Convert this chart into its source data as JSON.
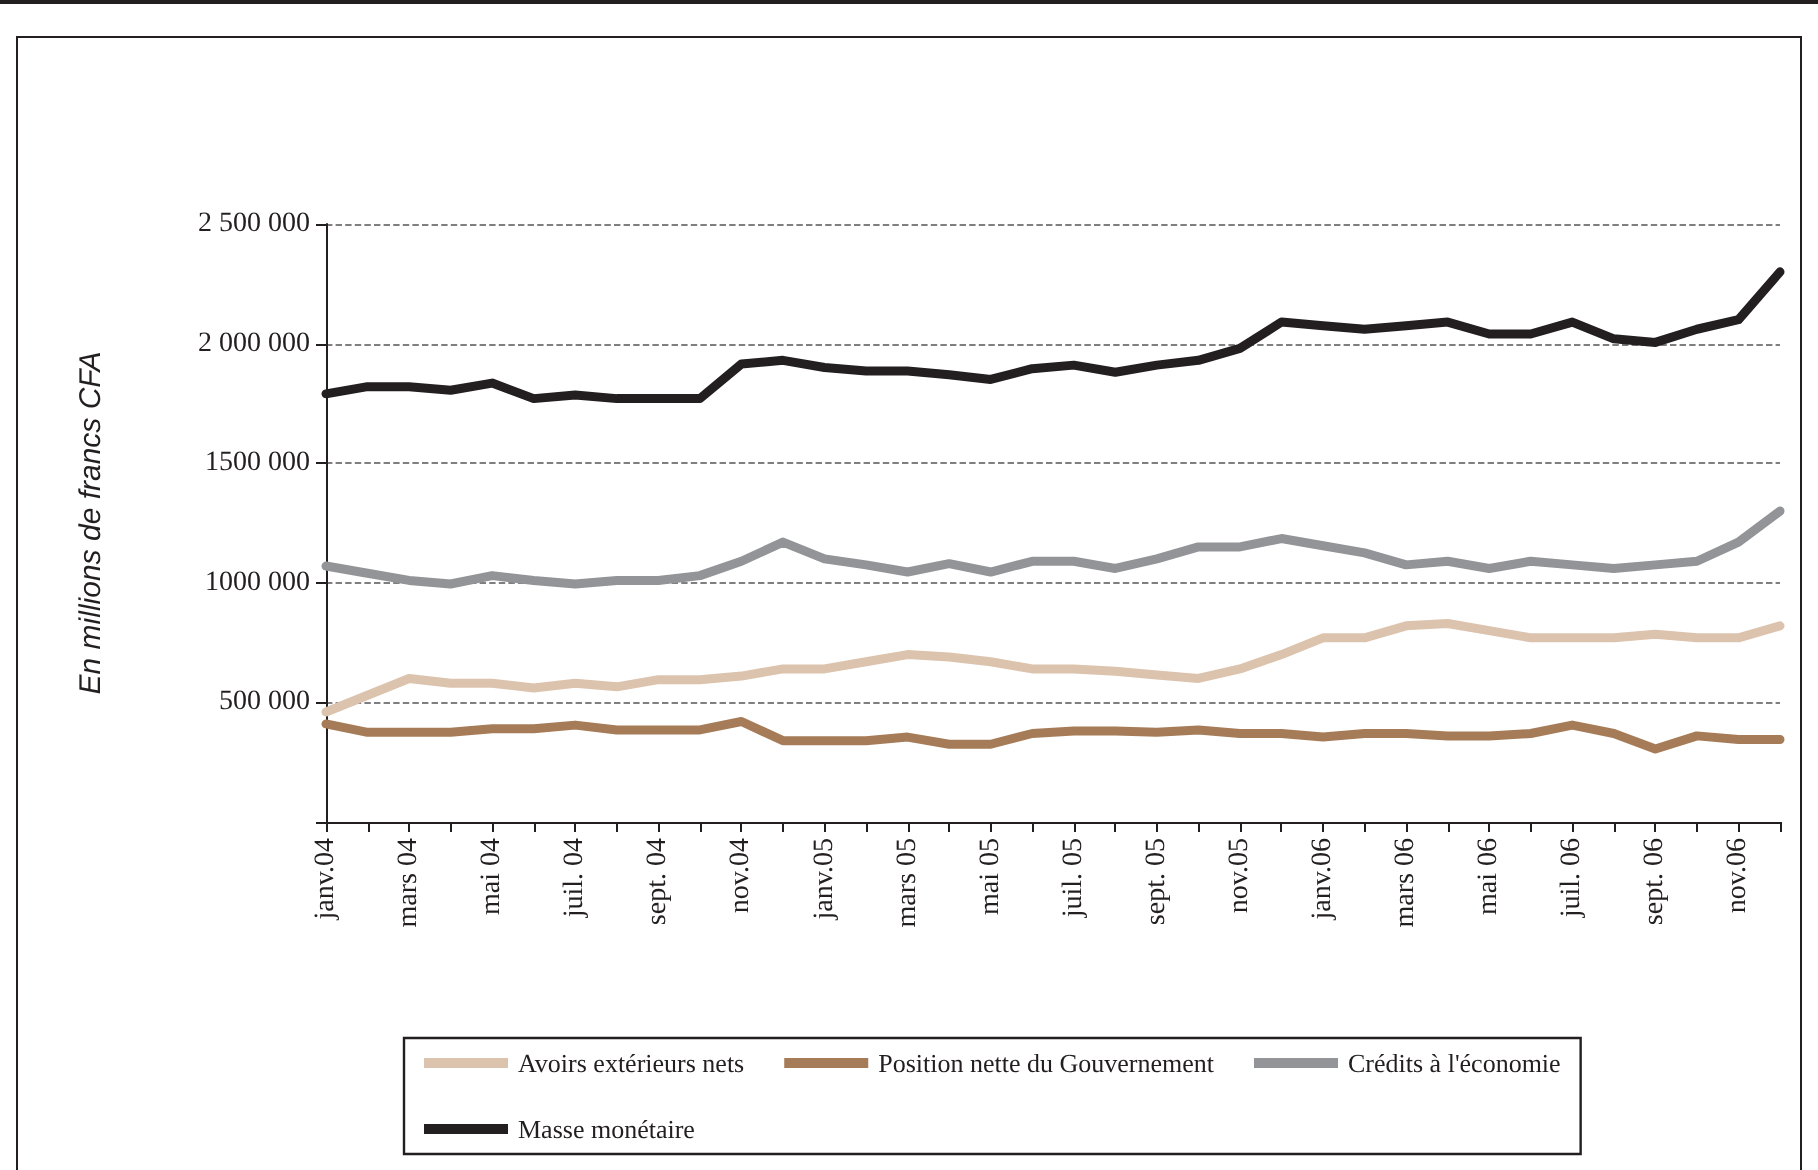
{
  "chart_data": {
    "type": "line",
    "ylabel": "En millions de francs CFA",
    "categories": [
      "janv.04",
      null,
      "mars 04",
      null,
      "mai 04",
      null,
      "juil. 04",
      null,
      "sept. 04",
      null,
      "nov.04",
      null,
      "janv.05",
      null,
      "mars 05",
      null,
      "mai 05",
      null,
      "juil. 05",
      null,
      "sept. 05",
      null,
      "nov.05",
      null,
      "janv.06",
      null,
      "mars 06",
      null,
      "mai 06",
      null,
      "juil. 06",
      null,
      "sept. 06",
      null,
      "nov.06",
      null
    ],
    "series": [
      {
        "name": "Avoirs extérieurs nets",
        "color": "#dcc3ae",
        "values": [
          460000,
          530000,
          600000,
          580000,
          580000,
          560000,
          580000,
          565000,
          595000,
          595000,
          610000,
          640000,
          640000,
          670000,
          700000,
          690000,
          670000,
          640000,
          640000,
          630000,
          615000,
          600000,
          640000,
          700000,
          770000,
          770000,
          820000,
          830000,
          800000,
          770000,
          770000,
          770000,
          785000,
          770000,
          770000,
          820000
        ]
      },
      {
        "name": "Position nette du Gouvernement",
        "color": "#a67c58",
        "values": [
          410000,
          375000,
          375000,
          375000,
          390000,
          390000,
          405000,
          385000,
          385000,
          385000,
          420000,
          340000,
          340000,
          340000,
          355000,
          325000,
          325000,
          370000,
          380000,
          380000,
          375000,
          385000,
          370000,
          370000,
          355000,
          370000,
          370000,
          360000,
          360000,
          370000,
          405000,
          370000,
          305000,
          360000,
          345000,
          345000
        ]
      },
      {
        "name": "Crédits à l'économie",
        "color": "#929497",
        "values": [
          1070000,
          1040000,
          1010000,
          995000,
          1030000,
          1010000,
          995000,
          1010000,
          1010000,
          1030000,
          1090000,
          1170000,
          1100000,
          1075000,
          1045000,
          1080000,
          1045000,
          1090000,
          1090000,
          1060000,
          1100000,
          1150000,
          1150000,
          1185000,
          1155000,
          1125000,
          1075000,
          1090000,
          1060000,
          1090000,
          1075000,
          1060000,
          1075000,
          1090000,
          1170000,
          1300000
        ]
      },
      {
        "name": "Masse monétaire",
        "color": "#231f20",
        "values": [
          1790000,
          1820000,
          1820000,
          1805000,
          1835000,
          1770000,
          1785000,
          1770000,
          1770000,
          1770000,
          1915000,
          1930000,
          1900000,
          1885000,
          1885000,
          1870000,
          1850000,
          1895000,
          1910000,
          1880000,
          1910000,
          1930000,
          1980000,
          2090000,
          2075000,
          2060000,
          2075000,
          2090000,
          2040000,
          2040000,
          2090000,
          2020000,
          2005000,
          2060000,
          2100000,
          2300000
        ]
      }
    ],
    "ylim": [
      0,
      2500000
    ],
    "yticks": [
      {
        "value": 0,
        "label": null
      },
      {
        "value": 500000,
        "label": "500 000"
      },
      {
        "value": 1000000,
        "label": "1000 000"
      },
      {
        "value": 1500000,
        "label": "1500 000"
      },
      {
        "value": 2000000,
        "label": "2 000 000"
      },
      {
        "value": 2500000,
        "label": "2 500 000"
      }
    ],
    "grid": "y",
    "legend": "bottom",
    "marker": "none",
    "line_style": "solid"
  }
}
